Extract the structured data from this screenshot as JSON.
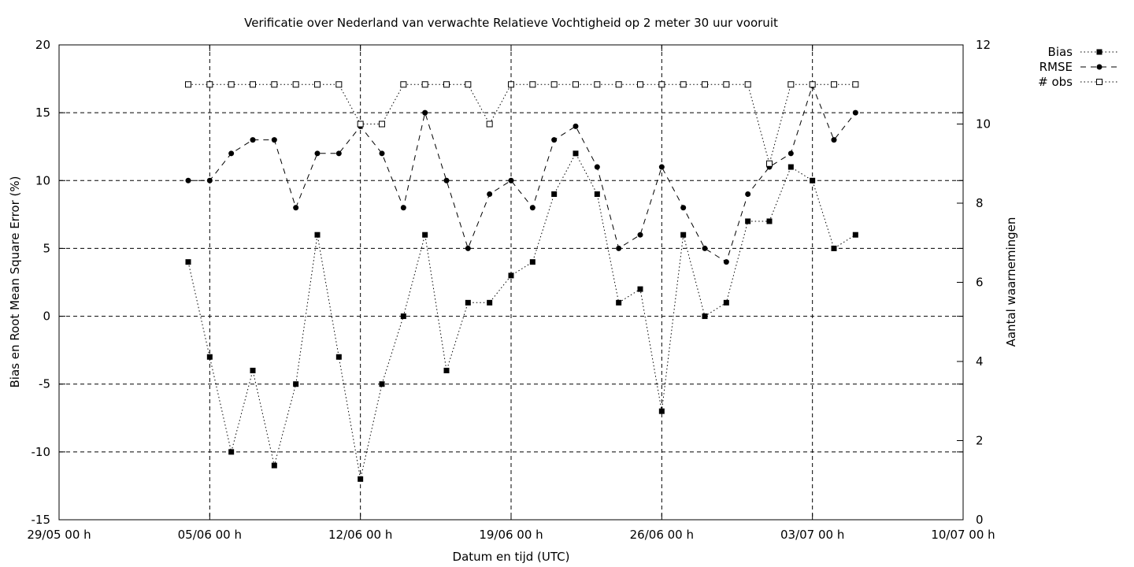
{
  "chart_data": {
    "type": "line",
    "title": "Verificatie over Nederland van verwachte Relatieve Vochtigheid op 2 meter 30 uur vooruit",
    "xlabel": "Datum en tijd (UTC)",
    "ylabel": "Bias en Root Mean Square Error (%)",
    "y2label": "Aantal waarnemingen",
    "x_tick_labels": [
      "29/05 00 h",
      "05/06 00 h",
      "12/06 00 h",
      "19/06 00 h",
      "26/06 00 h",
      "03/07 00 h",
      "10/07 00 h"
    ],
    "x_ticks_day": [
      0,
      7,
      14,
      21,
      28,
      35,
      42
    ],
    "xlim_day": [
      0,
      42
    ],
    "y_ticks": [
      20,
      15,
      10,
      5,
      0,
      -5,
      -10,
      -15
    ],
    "ylim": [
      -15,
      20
    ],
    "y2_ticks": [
      12,
      10,
      8,
      6,
      4,
      2,
      0
    ],
    "y2lim": [
      0,
      12
    ],
    "grid": true,
    "legend_position": "top-right, outside plot",
    "x_day": [
      6,
      7,
      8,
      9,
      10,
      11,
      12,
      13,
      14,
      15,
      16,
      17,
      18,
      19,
      20,
      21,
      22,
      23,
      24,
      25,
      26,
      27,
      28,
      29,
      30,
      31,
      32,
      33,
      34,
      35,
      36,
      37,
      38
    ],
    "series": [
      {
        "name": "Bias",
        "axis": "left",
        "marker": "filled-square",
        "dash": "dotted",
        "y": [
          4,
          -3,
          -10,
          -4,
          -11,
          -5,
          6,
          -3,
          -12,
          -5,
          0,
          6,
          -4,
          1,
          1,
          3,
          4,
          9,
          12,
          9,
          1,
          2,
          -7,
          6,
          0,
          1,
          7,
          7,
          11,
          10,
          5,
          6,
          null
        ]
      },
      {
        "name": "RMSE",
        "axis": "left",
        "marker": "filled-circle",
        "dash": "dashed",
        "y": [
          10,
          10,
          12,
          13,
          13,
          8,
          12,
          12,
          14,
          12,
          8,
          15,
          10,
          5,
          9,
          10,
          8,
          13,
          14,
          11,
          5,
          6,
          11,
          8,
          5,
          4,
          9,
          11,
          12,
          17,
          13,
          15,
          null
        ]
      },
      {
        "name": "# obs",
        "axis": "right",
        "marker": "open-square",
        "dash": "dotted",
        "y": [
          11,
          11,
          11,
          11,
          11,
          11,
          11,
          11,
          10,
          10,
          11,
          11,
          11,
          11,
          10,
          11,
          11,
          11,
          11,
          11,
          11,
          11,
          11,
          11,
          11,
          11,
          11,
          9,
          11,
          11,
          11,
          11,
          null
        ]
      }
    ]
  }
}
